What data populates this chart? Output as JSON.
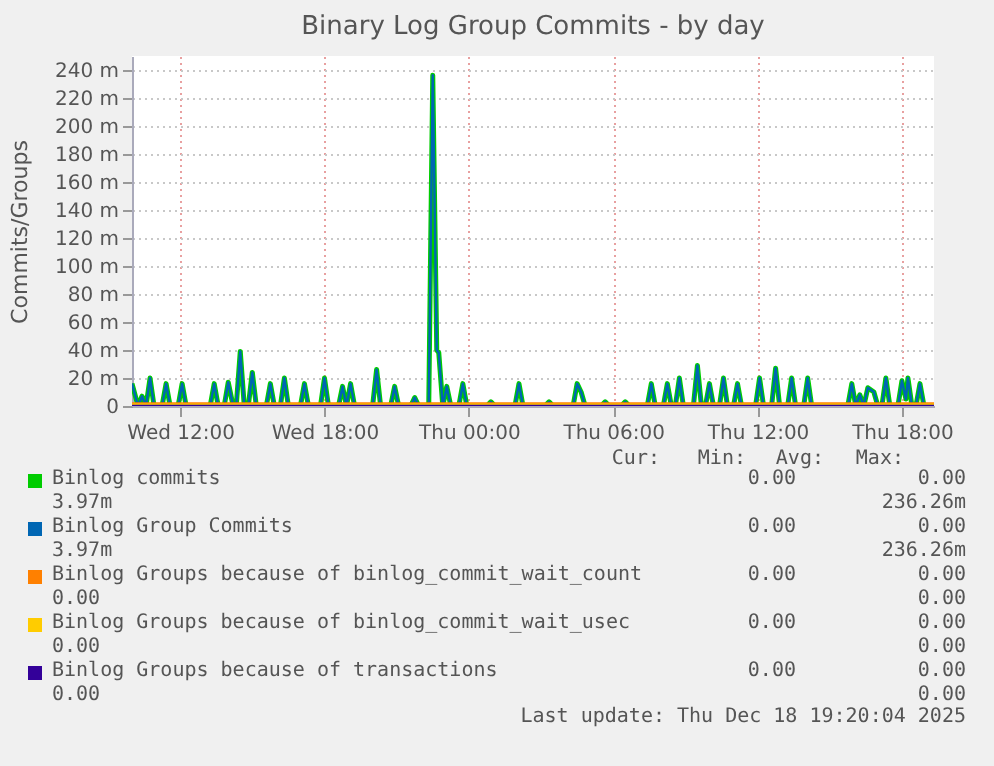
{
  "chart_data": {
    "type": "line",
    "title": "Binary Log Group Commits - by day",
    "ylabel": "Commits/Groups",
    "x": [
      "2025-12-17T10:00",
      "2025-12-17T10:15",
      "2025-12-17T10:25",
      "2025-12-17T10:35",
      "2025-12-17T10:45",
      "2025-12-17T10:55",
      "2025-12-17T11:15",
      "2025-12-17T11:25",
      "2025-12-17T11:35",
      "2025-12-17T11:55",
      "2025-12-17T12:05",
      "2025-12-17T12:15",
      "2025-12-17T13:15",
      "2025-12-17T13:25",
      "2025-12-17T13:35",
      "2025-12-17T13:50",
      "2025-12-17T14:00",
      "2025-12-17T14:10",
      "2025-12-17T14:20",
      "2025-12-17T14:30",
      "2025-12-17T14:40",
      "2025-12-17T14:50",
      "2025-12-17T15:00",
      "2025-12-17T15:10",
      "2025-12-17T15:35",
      "2025-12-17T15:45",
      "2025-12-17T15:55",
      "2025-12-17T16:10",
      "2025-12-17T16:20",
      "2025-12-17T16:30",
      "2025-12-17T17:00",
      "2025-12-17T17:10",
      "2025-12-17T17:20",
      "2025-12-17T17:50",
      "2025-12-17T18:00",
      "2025-12-17T18:10",
      "2025-12-17T18:35",
      "2025-12-17T18:45",
      "2025-12-17T18:55",
      "2025-12-17T19:05",
      "2025-12-17T19:15",
      "2025-12-17T20:00",
      "2025-12-17T20:10",
      "2025-12-17T20:20",
      "2025-12-17T20:45",
      "2025-12-17T20:55",
      "2025-12-17T21:05",
      "2025-12-17T21:35",
      "2025-12-17T21:45",
      "2025-12-17T21:55",
      "2025-12-17T22:20",
      "2025-12-17T22:30",
      "2025-12-17T22:40",
      "2025-12-17T22:45",
      "2025-12-17T22:55",
      "2025-12-17T23:05",
      "2025-12-17T23:15",
      "2025-12-17T23:35",
      "2025-12-17T23:45",
      "2025-12-17T23:55",
      "2025-12-18T00:45",
      "2025-12-18T00:55",
      "2025-12-18T01:05",
      "2025-12-18T01:55",
      "2025-12-18T02:05",
      "2025-12-18T02:15",
      "2025-12-18T03:10",
      "2025-12-18T03:20",
      "2025-12-18T03:30",
      "2025-12-18T04:20",
      "2025-12-18T04:30",
      "2025-12-18T04:40",
      "2025-12-18T04:50",
      "2025-12-18T05:30",
      "2025-12-18T05:40",
      "2025-12-18T05:50",
      "2025-12-18T06:20",
      "2025-12-18T06:30",
      "2025-12-18T06:40",
      "2025-12-18T07:25",
      "2025-12-18T07:35",
      "2025-12-18T07:45",
      "2025-12-18T08:05",
      "2025-12-18T08:15",
      "2025-12-18T08:25",
      "2025-12-18T08:35",
      "2025-12-18T08:45",
      "2025-12-18T08:55",
      "2025-12-18T09:20",
      "2025-12-18T09:30",
      "2025-12-18T09:40",
      "2025-12-18T09:50",
      "2025-12-18T10:00",
      "2025-12-18T10:10",
      "2025-12-18T10:25",
      "2025-12-18T10:35",
      "2025-12-18T10:45",
      "2025-12-18T11:00",
      "2025-12-18T11:10",
      "2025-12-18T11:20",
      "2025-12-18T11:55",
      "2025-12-18T12:05",
      "2025-12-18T12:15",
      "2025-12-18T12:35",
      "2025-12-18T12:45",
      "2025-12-18T12:55",
      "2025-12-18T13:15",
      "2025-12-18T13:25",
      "2025-12-18T13:35",
      "2025-12-18T13:55",
      "2025-12-18T14:05",
      "2025-12-18T14:15",
      "2025-12-18T15:45",
      "2025-12-18T15:55",
      "2025-12-18T16:05",
      "2025-12-18T16:15",
      "2025-12-18T16:25",
      "2025-12-18T16:35",
      "2025-12-18T16:50",
      "2025-12-18T17:00",
      "2025-12-18T17:10",
      "2025-12-18T17:20",
      "2025-12-18T17:30",
      "2025-12-18T17:50",
      "2025-12-18T18:00",
      "2025-12-18T18:10",
      "2025-12-18T18:15",
      "2025-12-18T18:25",
      "2025-12-18T18:35",
      "2025-12-18T18:45",
      "2025-12-18T18:55",
      "2025-12-18T19:20"
    ],
    "series": [
      {
        "name": "Binlog commits",
        "color": "#00cc00",
        "values": [
          16,
          0,
          7,
          0,
          20,
          0,
          0,
          16,
          0,
          0,
          16,
          0,
          0,
          16,
          0,
          0,
          17,
          3,
          0,
          39,
          0,
          0,
          24,
          0,
          0,
          16,
          0,
          0,
          20,
          0,
          0,
          16,
          0,
          0,
          20,
          0,
          0,
          14,
          0,
          16,
          0,
          0,
          26,
          0,
          0,
          14,
          0,
          0,
          6,
          0,
          0,
          236.26,
          40,
          38,
          0,
          14,
          0,
          0,
          16,
          0,
          0,
          3,
          0,
          0,
          16,
          0,
          0,
          3,
          0,
          0,
          16,
          10,
          0,
          0,
          3,
          0,
          0,
          3,
          0,
          0,
          16,
          0,
          0,
          16,
          0,
          0,
          20,
          0,
          0,
          29,
          0,
          0,
          16,
          0,
          0,
          20,
          0,
          0,
          16,
          0,
          0,
          20,
          0,
          0,
          27,
          0,
          0,
          20,
          0,
          0,
          20,
          0,
          0,
          16,
          0,
          8,
          0,
          13,
          10,
          0,
          0,
          20,
          0,
          0,
          18,
          5,
          20,
          0,
          0,
          16,
          0,
          0
        ]
      },
      {
        "name": "Binlog Group Commits",
        "color": "#0066b3",
        "values": [
          16,
          0,
          7,
          0,
          20,
          0,
          0,
          16,
          0,
          0,
          16,
          0,
          0,
          16,
          0,
          0,
          17,
          3,
          0,
          39,
          0,
          0,
          24,
          0,
          0,
          16,
          0,
          0,
          20,
          0,
          0,
          16,
          0,
          0,
          20,
          0,
          0,
          14,
          0,
          16,
          0,
          0,
          26,
          0,
          0,
          14,
          0,
          0,
          6,
          0,
          0,
          236.26,
          40,
          38,
          0,
          14,
          0,
          0,
          16,
          0,
          0,
          3,
          0,
          0,
          16,
          0,
          0,
          3,
          0,
          0,
          16,
          10,
          0,
          0,
          3,
          0,
          0,
          3,
          0,
          0,
          16,
          0,
          0,
          16,
          0,
          0,
          20,
          0,
          0,
          29,
          0,
          0,
          16,
          0,
          0,
          20,
          0,
          0,
          16,
          0,
          0,
          20,
          0,
          0,
          27,
          0,
          0,
          20,
          0,
          0,
          20,
          0,
          0,
          16,
          0,
          8,
          0,
          13,
          10,
          0,
          0,
          20,
          0,
          0,
          18,
          5,
          20,
          0,
          0,
          16,
          0,
          0
        ]
      },
      {
        "name": "Binlog Groups because of binlog_commit_wait_count",
        "color": "#ff8000",
        "x": [
          "2025-12-17T10:00",
          "2025-12-18T19:20"
        ],
        "values": [
          0,
          0
        ]
      },
      {
        "name": "Binlog Groups because of binlog_commit_wait_usec",
        "color": "#ffcc00",
        "x": [
          "2025-12-17T10:00",
          "2025-12-18T19:20"
        ],
        "values": [
          0,
          0
        ]
      },
      {
        "name": "Binlog Groups because of transactions",
        "color": "#330099",
        "x": [
          "2025-12-17T10:00",
          "2025-12-18T19:20"
        ],
        "values": [
          0,
          0
        ]
      }
    ],
    "xlim": [
      "2025-12-17T10:00",
      "2025-12-18T19:20"
    ],
    "xticks": [
      {
        "value": "2025-12-17T12:00",
        "label": "Wed 12:00"
      },
      {
        "value": "2025-12-17T18:00",
        "label": "Wed 18:00"
      },
      {
        "value": "2025-12-18T00:00",
        "label": "Thu 00:00"
      },
      {
        "value": "2025-12-18T06:00",
        "label": "Thu 06:00"
      },
      {
        "value": "2025-12-18T12:00",
        "label": "Thu 12:00"
      },
      {
        "value": "2025-12-18T18:00",
        "label": "Thu 18:00"
      }
    ],
    "ylim": [
      0,
      250
    ],
    "yticks": [
      0,
      {
        "value": 20,
        "label": "20 m"
      },
      {
        "value": 40,
        "label": "40 m"
      },
      {
        "value": 60,
        "label": "60 m"
      },
      {
        "value": 80,
        "label": "80 m"
      },
      {
        "value": 100,
        "label": "100 m"
      },
      {
        "value": 120,
        "label": "120 m"
      },
      {
        "value": 140,
        "label": "140 m"
      },
      {
        "value": 160,
        "label": "160 m"
      },
      {
        "value": 180,
        "label": "180 m"
      },
      {
        "value": 200,
        "label": "200 m"
      },
      {
        "value": 220,
        "label": "220 m"
      },
      {
        "value": 240,
        "label": "240 m"
      }
    ],
    "grid": true,
    "legend": "bottom",
    "marker": "none",
    "line_style": "solid",
    "annotations": [
      "Cur:",
      "Min:",
      "Avg:",
      "Max:",
      "0.00",
      "0.00",
      "3.97m",
      "236.26m",
      "0.00",
      "0.00",
      "3.97m",
      "236.26m",
      "0.00",
      "0.00",
      "0.00",
      "0.00",
      "0.00",
      "0.00",
      "0.00",
      "0.00",
      "0.00",
      "0.00",
      "0.00",
      "0.00",
      "Last update: Thu Dec 18 19:20:04 2025"
    ]
  }
}
